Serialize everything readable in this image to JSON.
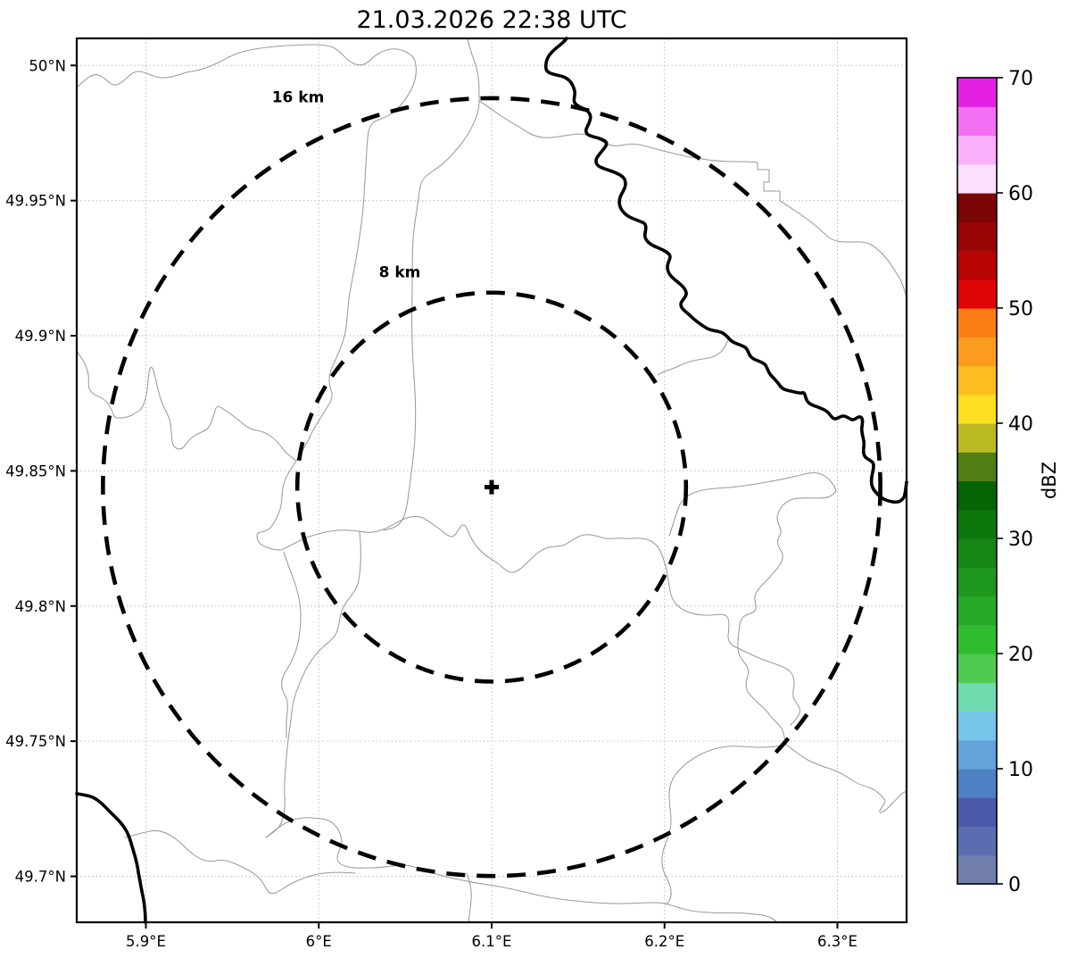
{
  "figure": {
    "title": "21.03.2026 22:38 UTC"
  },
  "map": {
    "x_axis": {
      "range_deg_e": [
        5.86,
        6.34
      ],
      "ticks": [
        {
          "value": 5.9,
          "label": "5.9°E"
        },
        {
          "value": 6.0,
          "label": "6°E"
        },
        {
          "value": 6.1,
          "label": "6.1°E"
        },
        {
          "value": 6.2,
          "label": "6.2°E"
        },
        {
          "value": 6.3,
          "label": "6.3°E"
        }
      ]
    },
    "y_axis": {
      "range_deg_n": [
        49.683,
        50.01
      ],
      "ticks": [
        {
          "value": 50.0,
          "label": "50°N"
        },
        {
          "value": 49.95,
          "label": "49.95°N"
        },
        {
          "value": 49.9,
          "label": "49.9°N"
        },
        {
          "value": 49.85,
          "label": "49.85°N"
        },
        {
          "value": 49.8,
          "label": "49.8°N"
        },
        {
          "value": 49.75,
          "label": "49.75°N"
        },
        {
          "value": 49.7,
          "label": "49.7°N"
        }
      ]
    },
    "radar_site": {
      "lon_deg_e": 6.1,
      "lat_deg_n": 49.844,
      "marker": "+"
    },
    "range_rings": [
      {
        "label": "8 km",
        "radius_km": 8
      },
      {
        "label": "16 km",
        "radius_km": 16
      }
    ]
  },
  "colorbar": {
    "label": "dBZ",
    "min": 0,
    "max": 70,
    "segment_step_dbz": 2.5,
    "tick_values": [
      0,
      10,
      20,
      30,
      40,
      50,
      60,
      70
    ],
    "segment_colors_bottom_to_top": [
      "#727fab",
      "#5b6cb1",
      "#4a5aa9",
      "#4e81c4",
      "#64a2d9",
      "#77c5e9",
      "#70daae",
      "#4ecb4e",
      "#2fbd2f",
      "#26a926",
      "#1e971e",
      "#158515",
      "#0d760d",
      "#056505",
      "#4f7f13",
      "#baba22",
      "#fbdf20",
      "#fdbc1f",
      "#fb9c1f",
      "#fa7d15",
      "#dd0505",
      "#b90505",
      "#970505",
      "#7b0505",
      "#fcdffc",
      "#f9aff9",
      "#f36ff3",
      "#e520e5"
    ]
  },
  "chart_data": {
    "type": "heatmap",
    "title": "21.03.2026 22:38 UTC",
    "xlabel": "",
    "ylabel": "",
    "x_tick_labels": [
      "5.9°E",
      "6°E",
      "6.1°E",
      "6.2°E",
      "6.3°E"
    ],
    "y_tick_labels": [
      "50°N",
      "49.95°N",
      "49.9°N",
      "49.85°N",
      "49.8°N",
      "49.75°N",
      "49.7°N"
    ],
    "x_range_deg_e": [
      5.86,
      6.34
    ],
    "y_range_deg_n": [
      49.683,
      50.01
    ],
    "grid": true,
    "colorbar_label": "dBZ",
    "colorbar_range_dbz": [
      0,
      70
    ],
    "colorbar_tick_values": [
      0,
      10,
      20,
      30,
      40,
      50,
      60,
      70
    ],
    "radar_center": {
      "lon_deg_e": 6.1,
      "lat_deg_n": 49.844
    },
    "range_rings_km": [
      8,
      16
    ],
    "range_ring_labels": [
      "8 km",
      "16 km"
    ],
    "reflectivity_echoes": "none visible (no precipitation plotted)"
  }
}
